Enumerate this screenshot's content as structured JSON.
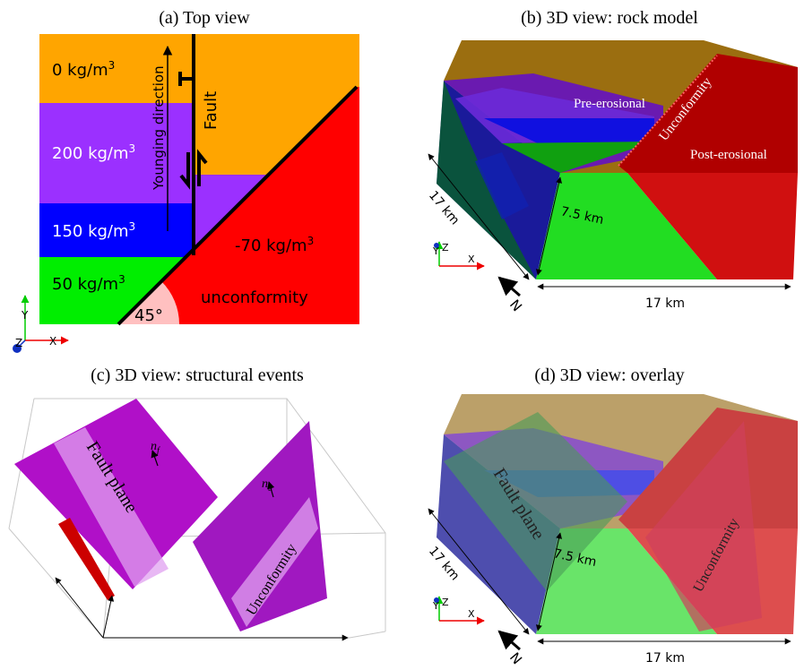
{
  "panels": {
    "a": {
      "title": "(a) Top view",
      "bands": [
        {
          "label": "0 kg/m",
          "sup": "3",
          "color": "#ffa500"
        },
        {
          "label": "200 kg/m",
          "sup": "3",
          "color": "#9b30ff"
        },
        {
          "label": "150 kg/m",
          "sup": "3",
          "color": "#0000ff"
        },
        {
          "label": "50 kg/m",
          "sup": "3",
          "color": "#00ee00"
        }
      ],
      "wedge": {
        "label": "-70 kg/m",
        "sup": "3",
        "text2": "unconformity",
        "color": "#ff0000"
      },
      "fault_label": "Fault",
      "younging_label": "Younging direction",
      "angle_label": "45°",
      "axes": {
        "y": "Y",
        "x": "X",
        "z": "Z"
      }
    },
    "b": {
      "title": "(b) 3D view: rock model",
      "pre_label": "Pre-erosional",
      "post_label": "Post-erosional",
      "unconf_label": "Unconformity",
      "dim_side": "17 km",
      "dim_height": "7.5 km",
      "dim_bottom": "17 km",
      "north": "N",
      "axes": {
        "y": "Y",
        "x": "X",
        "z": "Z"
      }
    },
    "c": {
      "title": "(c) 3D view: structural events",
      "fault_plane_label": "Fault plane",
      "unconf_label": "Unconformity",
      "nf_label": "n",
      "nf_sub": "f",
      "nu_label": "n",
      "nu_sub": "u"
    },
    "d": {
      "title": "(d) 3D view: overlay",
      "fault_plane_label": "Fault plane",
      "unconf_label": "Unconformity",
      "dim_side": "17 km",
      "dim_height": "7.5 km",
      "dim_bottom": "17 km",
      "north": "N",
      "axes": {
        "y": "Y",
        "x": "X",
        "z": "Z"
      }
    }
  },
  "colors": {
    "orange": "#ffa500",
    "purple": "#9b30ff",
    "blue": "#0000ff",
    "green": "#00ee00",
    "red": "#ff0000",
    "magenta": "#b010c8"
  }
}
